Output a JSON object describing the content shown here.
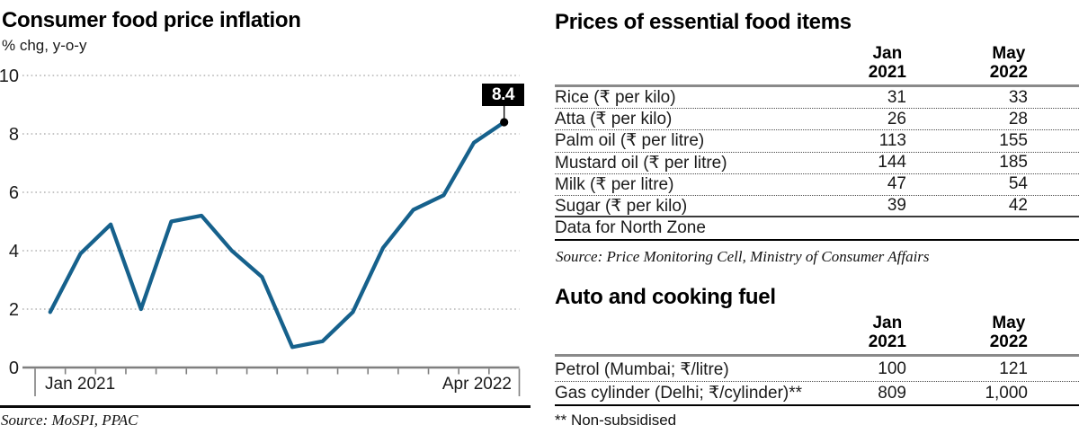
{
  "left_chart": {
    "title": "Consumer food price inflation",
    "unit_label": "% chg, y-o-y",
    "x_first_label": "Jan 2021",
    "x_last_label": "Apr 2022",
    "end_label": "8.4",
    "source": "Source: MoSPI, PPAC"
  },
  "chart_data": {
    "type": "line",
    "title": "Consumer food price inflation",
    "ylabel": "% chg, y-o-y",
    "x": [
      "Jan 2021",
      "Feb 2021",
      "Mar 2021",
      "Apr 2021",
      "May 2021",
      "Jun 2021",
      "Jul 2021",
      "Aug 2021",
      "Sep 2021",
      "Oct 2021",
      "Nov 2021",
      "Dec 2021",
      "Jan 2022",
      "Feb 2022",
      "Mar 2022",
      "Apr 2022"
    ],
    "values": [
      1.9,
      3.9,
      4.9,
      2.0,
      5.0,
      5.2,
      4.0,
      3.1,
      0.7,
      0.9,
      1.9,
      4.1,
      5.4,
      5.9,
      7.7,
      8.4
    ],
    "ylim": [
      0,
      10
    ],
    "yticks": [
      0,
      2,
      4,
      6,
      8,
      10
    ],
    "grid": true,
    "legend": "none",
    "line_color": "#16618C",
    "grid_color": "#a3a3a3",
    "axis_color": "#7f7f7f",
    "annotation": {
      "label": "8.4",
      "x": "Apr 2022",
      "y": 8.4
    }
  },
  "food_table": {
    "title": "Prices of essential food items",
    "col_headers": [
      {
        "line1": "Jan",
        "line2": "2021"
      },
      {
        "line1": "May",
        "line2": "2022"
      }
    ],
    "rows": [
      {
        "label": "Rice (₹ per kilo)",
        "jan_2021": "31",
        "may_2022": "33"
      },
      {
        "label": "Atta (₹ per kilo)",
        "jan_2021": "26",
        "may_2022": "28"
      },
      {
        "label": "Palm oil (₹ per litre)",
        "jan_2021": "113",
        "may_2022": "155"
      },
      {
        "label": "Mustard oil (₹ per litre)",
        "jan_2021": "144",
        "may_2022": "185"
      },
      {
        "label": "Milk (₹ per litre)",
        "jan_2021": "47",
        "may_2022": "54"
      },
      {
        "label": "Sugar (₹ per kilo)",
        "jan_2021": "39",
        "may_2022": "42"
      }
    ],
    "note": "Data for North Zone",
    "source": "Source: Price Monitoring Cell, Ministry of Consumer Affairs"
  },
  "fuel_table": {
    "title": "Auto and cooking fuel",
    "col_headers": [
      {
        "line1": "Jan",
        "line2": "2021"
      },
      {
        "line1": "May",
        "line2": "2022"
      }
    ],
    "rows": [
      {
        "label": "Petrol (Mumbai; ₹/litre)",
        "jan_2021": "100",
        "may_2022": "121"
      },
      {
        "label": "Gas cylinder (Delhi; ₹/cylinder)**",
        "jan_2021": "809",
        "may_2022": "1,000"
      }
    ],
    "footnote": "** Non-subsidised"
  }
}
